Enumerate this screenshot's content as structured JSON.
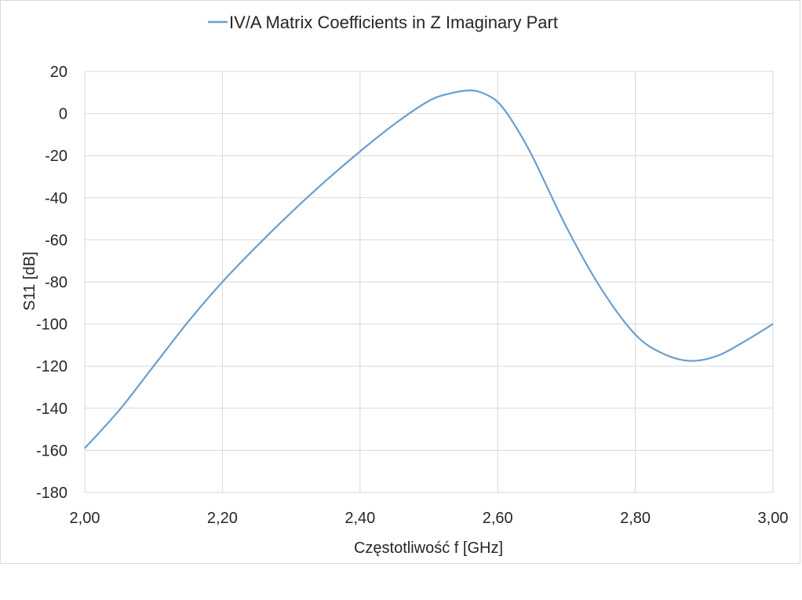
{
  "chart_data": {
    "type": "line",
    "title": "",
    "xlabel": "Częstotliwość f [GHz]",
    "ylabel": "S11 [dB]",
    "xlim": [
      2.0,
      3.0
    ],
    "ylim": [
      -180,
      20
    ],
    "x_ticks": [
      "2,00",
      "2,20",
      "2,40",
      "2,60",
      "2,80",
      "3,00"
    ],
    "x_tick_values": [
      2.0,
      2.2,
      2.4,
      2.6,
      2.8,
      3.0
    ],
    "y_ticks": [
      "20",
      "0",
      "-20",
      "-40",
      "-60",
      "-80",
      "-100",
      "-120",
      "-140",
      "-160",
      "-180"
    ],
    "y_tick_values": [
      20,
      0,
      -20,
      -40,
      -60,
      -80,
      -100,
      -120,
      -140,
      -160,
      -180
    ],
    "grid": true,
    "legend_position": "top-center",
    "series": [
      {
        "name": "IV/A Matrix Coefficients in Z Imaginary Part",
        "color": "#6a9fce",
        "x": [
          2.0,
          2.05,
          2.1,
          2.15,
          2.2,
          2.25,
          2.3,
          2.35,
          2.4,
          2.45,
          2.5,
          2.53,
          2.56,
          2.58,
          2.6,
          2.62,
          2.65,
          2.7,
          2.75,
          2.8,
          2.84,
          2.88,
          2.92,
          2.96,
          3.0
        ],
        "y": [
          -159,
          -141,
          -120,
          -99,
          -80,
          -63,
          -47,
          -32,
          -18,
          -5,
          6,
          9.5,
          11,
          9.5,
          5.5,
          -3,
          -20,
          -54,
          -83,
          -105,
          -114,
          -117.5,
          -115,
          -108,
          -100
        ]
      }
    ]
  }
}
